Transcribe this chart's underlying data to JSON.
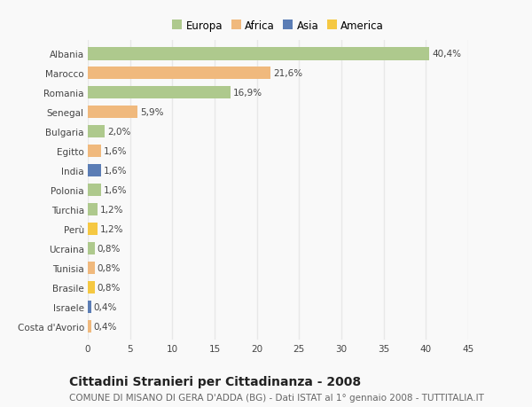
{
  "categories": [
    "Albania",
    "Marocco",
    "Romania",
    "Senegal",
    "Bulgaria",
    "Egitto",
    "India",
    "Polonia",
    "Turchia",
    "Perù",
    "Ucraina",
    "Tunisia",
    "Brasile",
    "Israele",
    "Costa d'Avorio"
  ],
  "values": [
    40.4,
    21.6,
    16.9,
    5.9,
    2.0,
    1.6,
    1.6,
    1.6,
    1.2,
    1.2,
    0.8,
    0.8,
    0.8,
    0.4,
    0.4
  ],
  "labels": [
    "40,4%",
    "21,6%",
    "16,9%",
    "5,9%",
    "2,0%",
    "1,6%",
    "1,6%",
    "1,6%",
    "1,2%",
    "1,2%",
    "0,8%",
    "0,8%",
    "0,8%",
    "0,4%",
    "0,4%"
  ],
  "continents": [
    "Europa",
    "Africa",
    "Europa",
    "Africa",
    "Europa",
    "Africa",
    "Asia",
    "Europa",
    "Europa",
    "America",
    "Europa",
    "Africa",
    "America",
    "Asia",
    "Africa"
  ],
  "continent_colors": {
    "Europa": "#aec98d",
    "Africa": "#f0b97d",
    "Asia": "#5b7db5",
    "America": "#f5c842"
  },
  "legend_order": [
    "Europa",
    "Africa",
    "Asia",
    "America"
  ],
  "title": "Cittadini Stranieri per Cittadinanza - 2008",
  "subtitle": "COMUNE DI MISANO DI GERA D'ADDA (BG) - Dati ISTAT al 1° gennaio 2008 - TUTTITALIA.IT",
  "xlim": [
    0,
    45
  ],
  "xticks": [
    0,
    5,
    10,
    15,
    20,
    25,
    30,
    35,
    40,
    45
  ],
  "background_color": "#f9f9f9",
  "grid_color": "#e8e8e8",
  "bar_height": 0.65,
  "title_fontsize": 10,
  "subtitle_fontsize": 7.5,
  "label_fontsize": 7.5,
  "tick_fontsize": 7.5,
  "legend_fontsize": 8.5
}
